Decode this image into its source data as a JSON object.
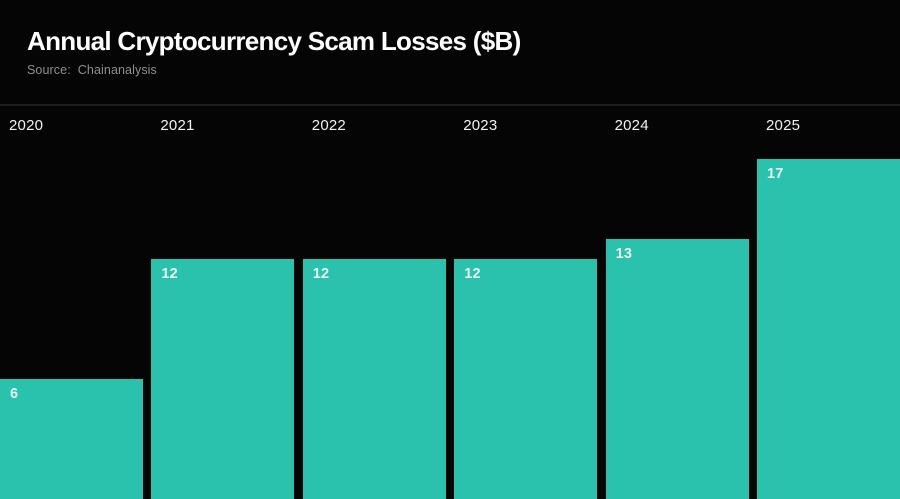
{
  "header": {
    "title": "Annual Cryptocurrency Scam Losses ($B)",
    "source_label": "Source:",
    "source_value": "Chainanalysis"
  },
  "chart_data": {
    "type": "bar",
    "title": "Annual Cryptocurrency Scam Losses ($B)",
    "source": "Chainanalysis",
    "categories": [
      "2020",
      "2021",
      "2022",
      "2023",
      "2024",
      "2025"
    ],
    "values": [
      6,
      12,
      12,
      12,
      13,
      17
    ],
    "xlabel": "",
    "ylabel": "",
    "ylim": [
      0,
      19.6
    ],
    "grid": false,
    "legend": false,
    "value_labels_shown": true,
    "colors": {
      "bar": "#2ac1ad",
      "value_label": "#eaf9f6",
      "year_label": "#f2f2f2",
      "background": "#050505",
      "divider": "#1f1f1f",
      "title": "#ffffff",
      "source_text": "#8f8f8f"
    }
  }
}
